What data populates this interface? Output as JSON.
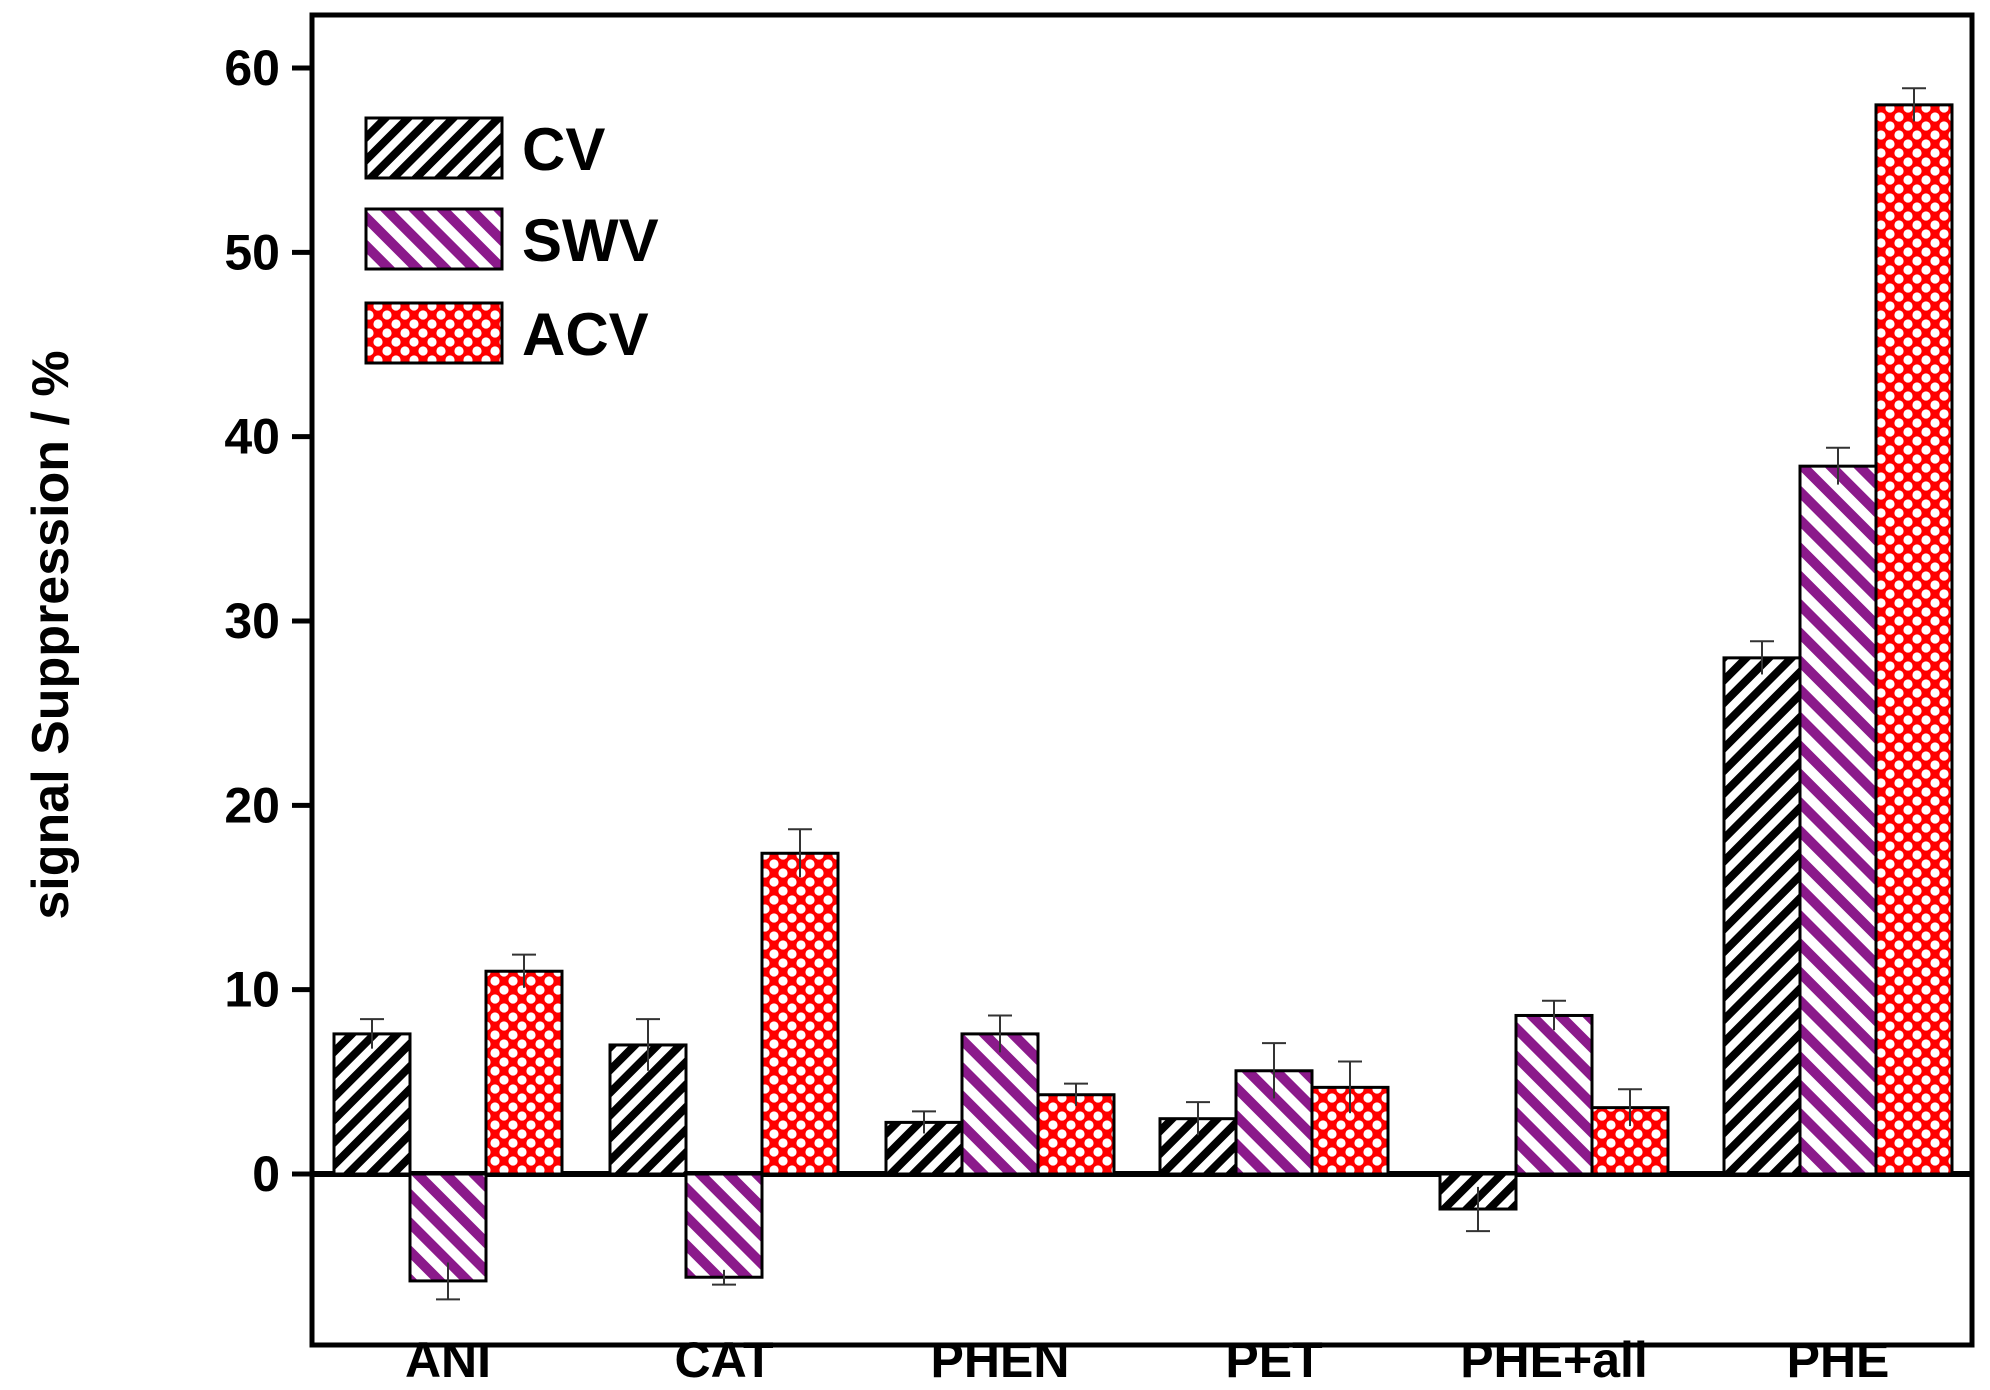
{
  "chart_data": {
    "type": "bar",
    "title": "",
    "xlabel": "",
    "ylabel": "signal Suppression / %",
    "ylim": [
      -10,
      62
    ],
    "yticks": [
      0,
      10,
      20,
      30,
      40,
      50,
      60
    ],
    "grid": false,
    "legend_position": "top-left",
    "categories": [
      "ANI",
      "CAT",
      "PHEN",
      "PET",
      "PHE+all",
      "PHE"
    ],
    "series": [
      {
        "name": "CV",
        "pattern": "diag-back",
        "color": "#000000",
        "values": [
          7.6,
          7.0,
          2.8,
          3.0,
          -1.9,
          28.0
        ],
        "errors": [
          0.8,
          1.4,
          0.6,
          0.9,
          1.2,
          0.9
        ]
      },
      {
        "name": "SWV",
        "pattern": "diag-fwd",
        "color": "#8b1a8b",
        "values": [
          -5.8,
          -5.6,
          7.6,
          5.6,
          8.6,
          38.4
        ],
        "errors": [
          1.0,
          0.4,
          1.0,
          1.5,
          0.8,
          1.0
        ]
      },
      {
        "name": "ACV",
        "pattern": "cross-dots",
        "color": "#ff0000",
        "values": [
          11.0,
          17.4,
          4.3,
          4.7,
          3.6,
          58.0
        ],
        "errors": [
          0.9,
          1.3,
          0.6,
          1.4,
          1.0,
          0.9
        ]
      }
    ]
  }
}
